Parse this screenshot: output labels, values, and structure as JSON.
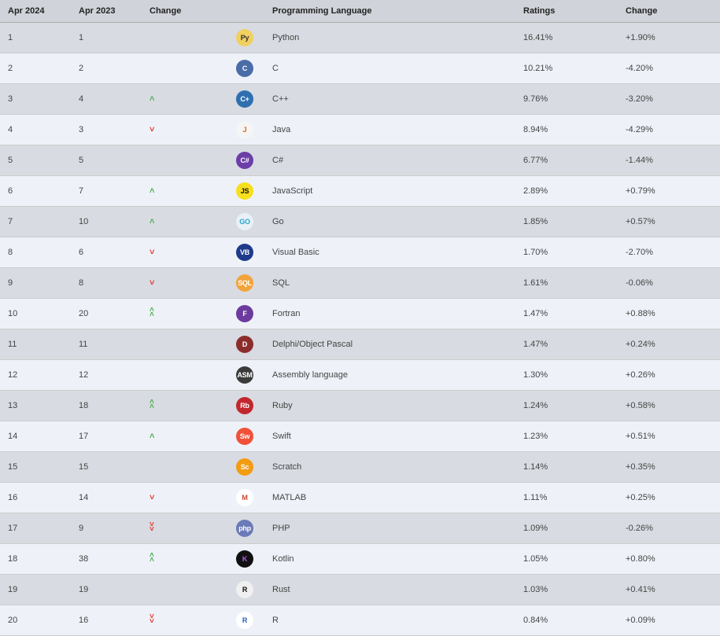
{
  "table": {
    "header_bg": "#d0d3d9",
    "row_odd_bg": "#d8dbe1",
    "row_even_bg": "#eef2f8",
    "border_color": "#cccccc",
    "text_color": "#333333",
    "font_size_pt": 8,
    "columns": [
      {
        "key": "rank24",
        "label": "Apr 2024"
      },
      {
        "key": "rank23",
        "label": "Apr 2023"
      },
      {
        "key": "change",
        "label": "Change"
      },
      {
        "key": "icon",
        "label": ""
      },
      {
        "key": "lang",
        "label": "Programming Language"
      },
      {
        "key": "ratings",
        "label": "Ratings"
      },
      {
        "key": "pct",
        "label": "Change"
      }
    ],
    "arrow_colors": {
      "up": "#4caf50",
      "down": "#e53935"
    },
    "rows": [
      {
        "rank24": "1",
        "rank23": "1",
        "change": "",
        "icon_bg": "#f0d060",
        "icon_fg": "#333",
        "icon_text": "Py",
        "icon_name": "python-icon",
        "lang": "Python",
        "ratings": "16.41%",
        "pct": "+1.90%"
      },
      {
        "rank24": "2",
        "rank23": "2",
        "change": "",
        "icon_bg": "#4a6da7",
        "icon_fg": "#fff",
        "icon_text": "C",
        "icon_name": "c-icon",
        "lang": "C",
        "ratings": "10.21%",
        "pct": "-4.20%"
      },
      {
        "rank24": "3",
        "rank23": "4",
        "change": "up",
        "icon_bg": "#2f6fb0",
        "icon_fg": "#fff",
        "icon_text": "C+",
        "icon_name": "cpp-icon",
        "lang": "C++",
        "ratings": "9.76%",
        "pct": "-3.20%"
      },
      {
        "rank24": "4",
        "rank23": "3",
        "change": "down",
        "icon_bg": "#f5f5f5",
        "icon_fg": "#e06c00",
        "icon_text": "J",
        "icon_name": "java-icon",
        "lang": "Java",
        "ratings": "8.94%",
        "pct": "-4.29%"
      },
      {
        "rank24": "5",
        "rank23": "5",
        "change": "",
        "icon_bg": "#6b3ea8",
        "icon_fg": "#fff",
        "icon_text": "C#",
        "icon_name": "csharp-icon",
        "lang": "C#",
        "ratings": "6.77%",
        "pct": "-1.44%"
      },
      {
        "rank24": "6",
        "rank23": "7",
        "change": "up",
        "icon_bg": "#f7df1e",
        "icon_fg": "#111",
        "icon_text": "JS",
        "icon_name": "javascript-icon",
        "lang": "JavaScript",
        "ratings": "2.89%",
        "pct": "+0.79%"
      },
      {
        "rank24": "7",
        "rank23": "10",
        "change": "up",
        "icon_bg": "#e8f1f7",
        "icon_fg": "#2aa6c9",
        "icon_text": "GO",
        "icon_name": "go-icon",
        "lang": "Go",
        "ratings": "1.85%",
        "pct": "+0.57%"
      },
      {
        "rank24": "8",
        "rank23": "6",
        "change": "down",
        "icon_bg": "#1e3a8a",
        "icon_fg": "#fff",
        "icon_text": "VB",
        "icon_name": "visualbasic-icon",
        "lang": "Visual Basic",
        "ratings": "1.70%",
        "pct": "-2.70%"
      },
      {
        "rank24": "9",
        "rank23": "8",
        "change": "down",
        "icon_bg": "#f2a43b",
        "icon_fg": "#fff",
        "icon_text": "SQL",
        "icon_name": "sql-icon",
        "lang": "SQL",
        "ratings": "1.61%",
        "pct": "-0.06%"
      },
      {
        "rank24": "10",
        "rank23": "20",
        "change": "up-double",
        "icon_bg": "#6d3b9e",
        "icon_fg": "#fff",
        "icon_text": "F",
        "icon_name": "fortran-icon",
        "lang": "Fortran",
        "ratings": "1.47%",
        "pct": "+0.88%"
      },
      {
        "rank24": "11",
        "rank23": "11",
        "change": "",
        "icon_bg": "#8c2d2d",
        "icon_fg": "#fff",
        "icon_text": "D",
        "icon_name": "delphi-icon",
        "lang": "Delphi/Object Pascal",
        "ratings": "1.47%",
        "pct": "+0.24%"
      },
      {
        "rank24": "12",
        "rank23": "12",
        "change": "",
        "icon_bg": "#3b3b3b",
        "icon_fg": "#fff",
        "icon_text": "ASM",
        "icon_name": "assembly-icon",
        "lang": "Assembly language",
        "ratings": "1.30%",
        "pct": "+0.26%"
      },
      {
        "rank24": "13",
        "rank23": "18",
        "change": "up-double",
        "icon_bg": "#c1272d",
        "icon_fg": "#fff",
        "icon_text": "Rb",
        "icon_name": "ruby-icon",
        "lang": "Ruby",
        "ratings": "1.24%",
        "pct": "+0.58%"
      },
      {
        "rank24": "14",
        "rank23": "17",
        "change": "up",
        "icon_bg": "#f05138",
        "icon_fg": "#fff",
        "icon_text": "Sw",
        "icon_name": "swift-icon",
        "lang": "Swift",
        "ratings": "1.23%",
        "pct": "+0.51%"
      },
      {
        "rank24": "15",
        "rank23": "15",
        "change": "",
        "icon_bg": "#f39c12",
        "icon_fg": "#fff",
        "icon_text": "Sc",
        "icon_name": "scratch-icon",
        "lang": "Scratch",
        "ratings": "1.14%",
        "pct": "+0.35%"
      },
      {
        "rank24": "16",
        "rank23": "14",
        "change": "down",
        "icon_bg": "#ffffff",
        "icon_fg": "#c94b2f",
        "icon_text": "M",
        "icon_name": "matlab-icon",
        "lang": "MATLAB",
        "ratings": "1.11%",
        "pct": "+0.25%"
      },
      {
        "rank24": "17",
        "rank23": "9",
        "change": "down-double",
        "icon_bg": "#6b7ab8",
        "icon_fg": "#fff",
        "icon_text": "php",
        "icon_name": "php-icon",
        "lang": "PHP",
        "ratings": "1.09%",
        "pct": "-0.26%"
      },
      {
        "rank24": "18",
        "rank23": "38",
        "change": "up-double",
        "icon_bg": "#111111",
        "icon_fg": "#b35cf0",
        "icon_text": "K",
        "icon_name": "kotlin-icon",
        "lang": "Kotlin",
        "ratings": "1.05%",
        "pct": "+0.80%"
      },
      {
        "rank24": "19",
        "rank23": "19",
        "change": "",
        "icon_bg": "#f0f0f0",
        "icon_fg": "#111",
        "icon_text": "R",
        "icon_name": "rust-icon",
        "lang": "Rust",
        "ratings": "1.03%",
        "pct": "+0.41%"
      },
      {
        "rank24": "20",
        "rank23": "16",
        "change": "down-double",
        "icon_bg": "#ffffff",
        "icon_fg": "#2462b3",
        "icon_text": "R",
        "icon_name": "r-icon",
        "lang": "R",
        "ratings": "0.84%",
        "pct": "+0.09%"
      }
    ]
  }
}
